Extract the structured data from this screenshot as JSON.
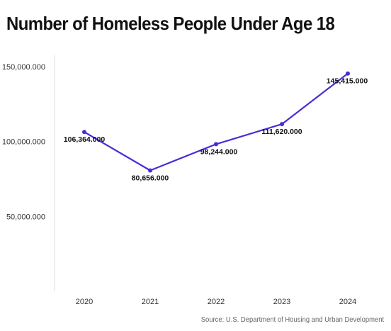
{
  "chart_data": {
    "type": "line",
    "title": "Number of Homeless People Under Age 18",
    "categories": [
      "2020",
      "2021",
      "2022",
      "2023",
      "2024"
    ],
    "series": [
      {
        "values": [
          106364,
          80656,
          98244,
          111620,
          145415
        ],
        "data_labels": [
          "106,364.000",
          "80,656.000",
          "98,244.000",
          "111,620.000",
          "145,415.000"
        ],
        "color": "#4b2bd6"
      }
    ],
    "y_ticks": [
      {
        "value": 50000,
        "label": "50,000.000"
      },
      {
        "value": 100000,
        "label": "100,000.000"
      },
      {
        "value": 150000,
        "label": "150,000.000"
      }
    ],
    "ylim": [
      0,
      150000
    ],
    "xlabel": "",
    "ylabel": "",
    "grid": false,
    "source": "Source: U.S. Department of Housing and Urban Development"
  },
  "colors": {
    "line": "#4b2bd6",
    "axis": "#dddddd",
    "title": "#111111"
  }
}
